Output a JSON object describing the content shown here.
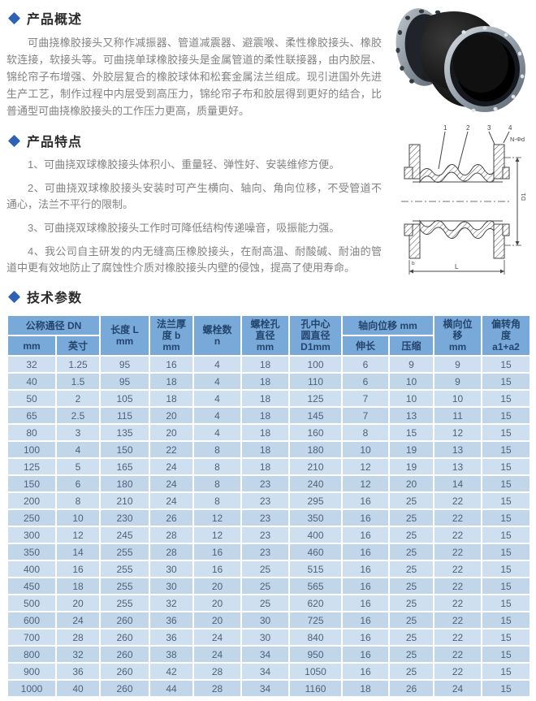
{
  "colors": {
    "accent_diamond": "#2f62b5",
    "table_header_bg": "#79a9d9",
    "table_header_text": "#24456d",
    "row_light": "#cedfef",
    "row_dark": "#c2d6ea",
    "cell_text": "#50627a"
  },
  "overview": {
    "title": "产品概述",
    "body": "可曲挠橡胶接头又称作减振器、管道减震器、避震喉、柔性橡胶接头、橡胶软连接，软接头等。可曲挠单球橡胶接头是金属管道的柔性联接器，由内胶层、锦纶帘子布增强、外胶层复合的橡胶球体和松套金属法兰组成。现引进国外先进生产工艺，制作过程中内层受到高压力，锦纶帘子布和胶层得到更好的结合，比普通型可曲挠橡胶接头的工作压力更高，质量更好。"
  },
  "features": {
    "title": "产品特点",
    "items": [
      "1、可曲挠双球橡胶接头体积小、重量轻、弹性好、安装维修方便。",
      "2、可曲挠双球橡胶接头安装时可产生横向、轴向、角向位移，不受管道不通心，法兰不平行的限制。",
      "3、可曲挠双球橡胶接头工作时可降低结构传递噪音，吸振能力强。",
      "4、我公司自主研发的内无缝高压橡胶接头，在耐高温、耐酸碱、耐油的管道中更有效地防止了腐蚀性介质对橡胶接头内壁的侵蚀，提高了使用寿命。"
    ]
  },
  "specs": {
    "title": "技术参数"
  },
  "drawing": {
    "part_labels": [
      "1",
      "2",
      "3",
      "4"
    ],
    "bolt_note": "N-Φd",
    "dim_diameter": "D1",
    "dim_length": "L",
    "dim_flange": "b"
  },
  "table": {
    "header": {
      "dn_group": "公称通径 DN",
      "dn_mm": "mm",
      "dn_inch": "英寸",
      "length": "长度 L\nmm",
      "flange_thickness": "法兰厚\n度 b\nmm",
      "bolt_count": "螺栓数\nn",
      "bolt_hole_dia": "螺栓孔\n直径\nmm",
      "hole_circle_dia": "孔中心\n圆直径\nD1mm",
      "axial_group": "轴向位移 mm",
      "axial_extend": "伸长",
      "axial_compress": "压缩",
      "lateral": "横向位\n移\nmm",
      "deflection": "偏转角\n度\na1+a2"
    },
    "rows": [
      [
        "32",
        "1.25",
        "95",
        "16",
        "4",
        "18",
        "100",
        "6",
        "9",
        "9",
        "15"
      ],
      [
        "40",
        "1.5",
        "95",
        "18",
        "4",
        "18",
        "110",
        "6",
        "10",
        "9",
        "15"
      ],
      [
        "50",
        "2",
        "105",
        "18",
        "4",
        "18",
        "125",
        "7",
        "10",
        "10",
        "15"
      ],
      [
        "65",
        "2.5",
        "115",
        "20",
        "4",
        "18",
        "145",
        "7",
        "13",
        "11",
        "15"
      ],
      [
        "80",
        "3",
        "135",
        "20",
        "4",
        "18",
        "160",
        "8",
        "15",
        "12",
        "15"
      ],
      [
        "100",
        "4",
        "150",
        "22",
        "8",
        "18",
        "180",
        "10",
        "19",
        "13",
        "15"
      ],
      [
        "125",
        "5",
        "165",
        "24",
        "8",
        "18",
        "210",
        "12",
        "19",
        "13",
        "15"
      ],
      [
        "150",
        "6",
        "180",
        "24",
        "8",
        "23",
        "240",
        "12",
        "20",
        "14",
        "15"
      ],
      [
        "200",
        "8",
        "210",
        "24",
        "8",
        "23",
        "295",
        "16",
        "25",
        "22",
        "15"
      ],
      [
        "250",
        "10",
        "230",
        "26",
        "12",
        "23",
        "350",
        "16",
        "25",
        "22",
        "15"
      ],
      [
        "300",
        "12",
        "245",
        "28",
        "12",
        "23",
        "400",
        "16",
        "25",
        "22",
        "15"
      ],
      [
        "350",
        "14",
        "255",
        "28",
        "16",
        "23",
        "460",
        "16",
        "25",
        "22",
        "15"
      ],
      [
        "400",
        "16",
        "255",
        "30",
        "16",
        "25",
        "515",
        "16",
        "25",
        "22",
        "15"
      ],
      [
        "450",
        "18",
        "255",
        "30",
        "20",
        "25",
        "565",
        "16",
        "25",
        "22",
        "15"
      ],
      [
        "500",
        "20",
        "255",
        "32",
        "20",
        "25",
        "620",
        "16",
        "25",
        "22",
        "15"
      ],
      [
        "600",
        "24",
        "260",
        "36",
        "20",
        "30",
        "725",
        "16",
        "25",
        "22",
        "15"
      ],
      [
        "700",
        "28",
        "260",
        "36",
        "24",
        "30",
        "840",
        "16",
        "25",
        "22",
        "15"
      ],
      [
        "800",
        "32",
        "260",
        "38",
        "24",
        "34",
        "950",
        "16",
        "25",
        "22",
        "15"
      ],
      [
        "900",
        "36",
        "260",
        "42",
        "28",
        "34",
        "1050",
        "16",
        "25",
        "22",
        "15"
      ],
      [
        "1000",
        "40",
        "260",
        "44",
        "28",
        "34",
        "1160",
        "18",
        "26",
        "24",
        "15"
      ]
    ]
  }
}
